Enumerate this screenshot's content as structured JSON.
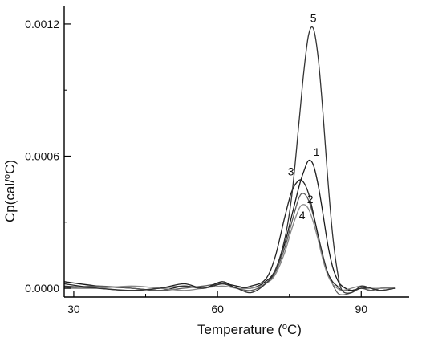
{
  "chart_data": {
    "type": "line",
    "title": "",
    "xlabel": "Temperature (",
    "xlabel_sup": "o",
    "xlabel_tail": "C)",
    "ylabel": "Cp(cal/",
    "ylabel_sup": "o",
    "ylabel_tail": "C)",
    "xlim": [
      28,
      100
    ],
    "ylim": [
      -4e-05,
      0.00128
    ],
    "x_ticks": [
      30,
      60,
      90
    ],
    "x_tick_labels": [
      "30",
      "60",
      "90"
    ],
    "y_ticks": [
      0.0,
      0.0006,
      0.0012
    ],
    "y_tick_labels": [
      "0.0000",
      "0.0006",
      "0.0012"
    ],
    "grid": false,
    "series": [
      {
        "name": "1",
        "color": "#1a1a1a",
        "x": [
          28,
          35,
          42,
          48,
          53,
          57,
          61,
          64,
          67,
          70,
          72,
          74,
          75.5,
          77,
          78,
          79,
          80,
          81,
          82,
          83,
          84,
          85,
          86,
          88,
          90,
          92,
          94,
          97
        ],
        "y": [
          3e-05,
          1e-05,
          0.0,
          -1e-05,
          1e-05,
          0.0,
          2e-05,
          1e-05,
          0.0,
          3e-05,
          8e-05,
          0.0002,
          0.00033,
          0.00046,
          0.00053,
          0.00058,
          0.00056,
          0.00047,
          0.00034,
          0.0002,
          0.0001,
          4e-05,
          1e-05,
          -1e-05,
          0.0,
          -1e-05,
          0.0,
          0.0
        ]
      },
      {
        "name": "2",
        "color": "#5a5a5a",
        "x": [
          28,
          35,
          42,
          48,
          53,
          57,
          61,
          64,
          67,
          70,
          72,
          74,
          75.5,
          77,
          78,
          79,
          80,
          81,
          82,
          83,
          84,
          85,
          86,
          88,
          90,
          92,
          94,
          97
        ],
        "y": [
          0.0,
          1e-05,
          0.0,
          -1e-05,
          0.0,
          1e-05,
          2e-05,
          0.0,
          -1e-05,
          2e-05,
          7e-05,
          0.00018,
          0.0003,
          0.00041,
          0.00043,
          0.0004,
          0.00033,
          0.00024,
          0.00015,
          7e-05,
          2e-05,
          -2e-05,
          -3e-05,
          -2e-05,
          0.0,
          -1e-05,
          0.0,
          0.0
        ]
      },
      {
        "name": "3",
        "color": "#222222",
        "x": [
          28,
          35,
          42,
          48,
          53,
          57,
          61,
          64,
          67,
          70,
          72,
          74,
          75.5,
          77,
          78,
          79,
          80,
          81,
          82,
          83,
          84,
          85,
          86,
          88,
          90,
          92,
          94,
          97
        ],
        "y": [
          2e-05,
          0.0,
          -1e-05,
          0.0,
          2e-05,
          0.0,
          3e-05,
          0.0,
          1e-05,
          4e-05,
          0.00014,
          0.00032,
          0.00044,
          0.00049,
          0.00048,
          0.00043,
          0.00034,
          0.00024,
          0.00014,
          7e-05,
          3e-05,
          1e-05,
          -1e-05,
          -1e-05,
          0.0,
          0.0,
          -1e-05,
          0.0
        ]
      },
      {
        "name": "4",
        "color": "#888888",
        "x": [
          28,
          35,
          42,
          48,
          53,
          57,
          61,
          64,
          67,
          70,
          72,
          74,
          75.5,
          77,
          78,
          79,
          80,
          81,
          82,
          83,
          84,
          85,
          86,
          88,
          90,
          92,
          94,
          97
        ],
        "y": [
          0.0,
          0.0,
          1e-05,
          0.0,
          -1e-05,
          0.0,
          1e-05,
          0.0,
          0.0,
          2e-05,
          6e-05,
          0.00016,
          0.00027,
          0.00036,
          0.00038,
          0.00036,
          0.0003,
          0.00022,
          0.00013,
          6e-05,
          2e-05,
          0.0,
          -1e-05,
          0.0,
          1e-05,
          0.0,
          0.0,
          0.0
        ]
      },
      {
        "name": "5",
        "color": "#333333",
        "x": [
          28,
          35,
          42,
          48,
          53,
          57,
          61,
          64,
          67,
          70,
          72,
          74,
          75.5,
          77,
          78,
          79,
          80,
          81,
          82,
          83,
          84,
          85,
          86,
          88,
          90,
          92,
          94,
          97
        ],
        "y": [
          1e-05,
          0.0,
          -1e-05,
          0.0,
          1e-05,
          0.0,
          2e-05,
          0.0,
          -2e-05,
          2e-05,
          8e-05,
          0.00022,
          0.00042,
          0.00075,
          0.00098,
          0.00115,
          0.00118,
          0.00105,
          0.0008,
          0.0005,
          0.00025,
          8e-05,
          -1e-05,
          -2e-05,
          1e-05,
          0.0,
          -1e-05,
          0.0
        ]
      }
    ]
  }
}
